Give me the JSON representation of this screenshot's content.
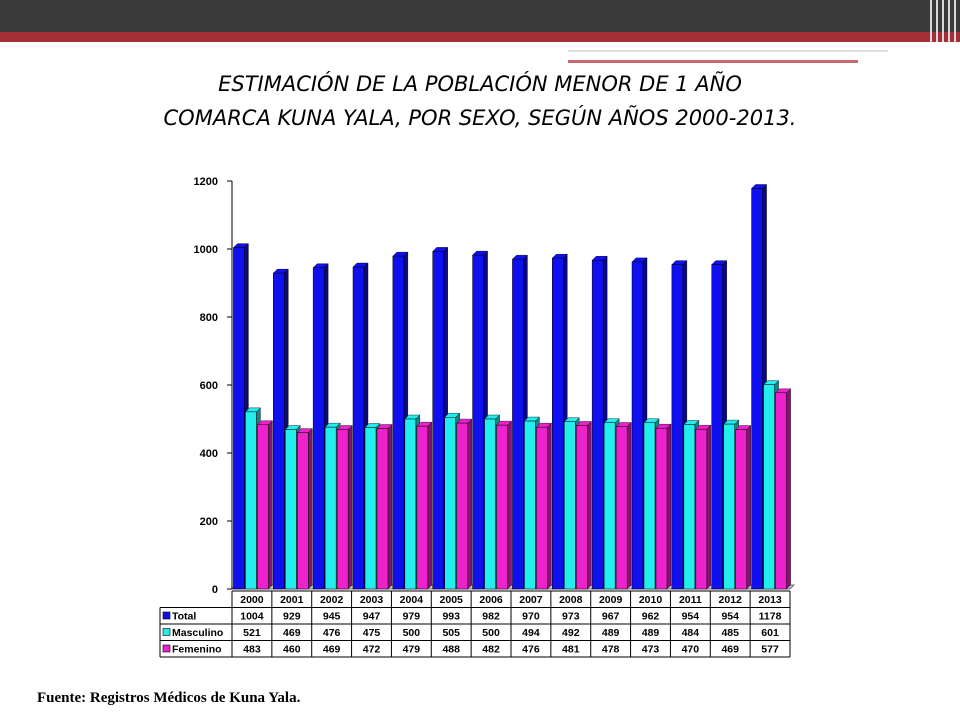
{
  "title_line1": "ESTIMACIÓN DE LA POBLACIÓN MENOR DE 1 AÑO",
  "title_line2": "COMARCA KUNA YALA, POR SEXO, SEGÚN AÑOS  2000-2013.",
  "source": "Fuente: Registros Médicos de Kuna Yala.",
  "chart_data": {
    "type": "bar",
    "categories": [
      "2000",
      "2001",
      "2002",
      "2003",
      "2004",
      "2005",
      "2006",
      "2007",
      "2008",
      "2009",
      "2010",
      "2011",
      "2012",
      "2013"
    ],
    "series": [
      {
        "name": "Total",
        "color": "#1010ee",
        "values": [
          1004,
          929,
          945,
          947,
          979,
          993,
          982,
          970,
          973,
          967,
          962,
          954,
          954,
          1178
        ]
      },
      {
        "name": "Masculino",
        "color": "#22eeee",
        "values": [
          521,
          469,
          476,
          475,
          500,
          505,
          500,
          494,
          492,
          489,
          489,
          484,
          485,
          601
        ]
      },
      {
        "name": "Femenino",
        "color": "#ee22cc",
        "values": [
          483,
          460,
          469,
          472,
          479,
          488,
          482,
          476,
          481,
          478,
          473,
          470,
          469,
          577
        ]
      }
    ],
    "yticks": [
      "0",
      "200",
      "400",
      "600",
      "800",
      "1000",
      "1200"
    ],
    "ylim": [
      0,
      1200
    ],
    "grid": false,
    "legend": "data table below chart",
    "three_d": true
  }
}
